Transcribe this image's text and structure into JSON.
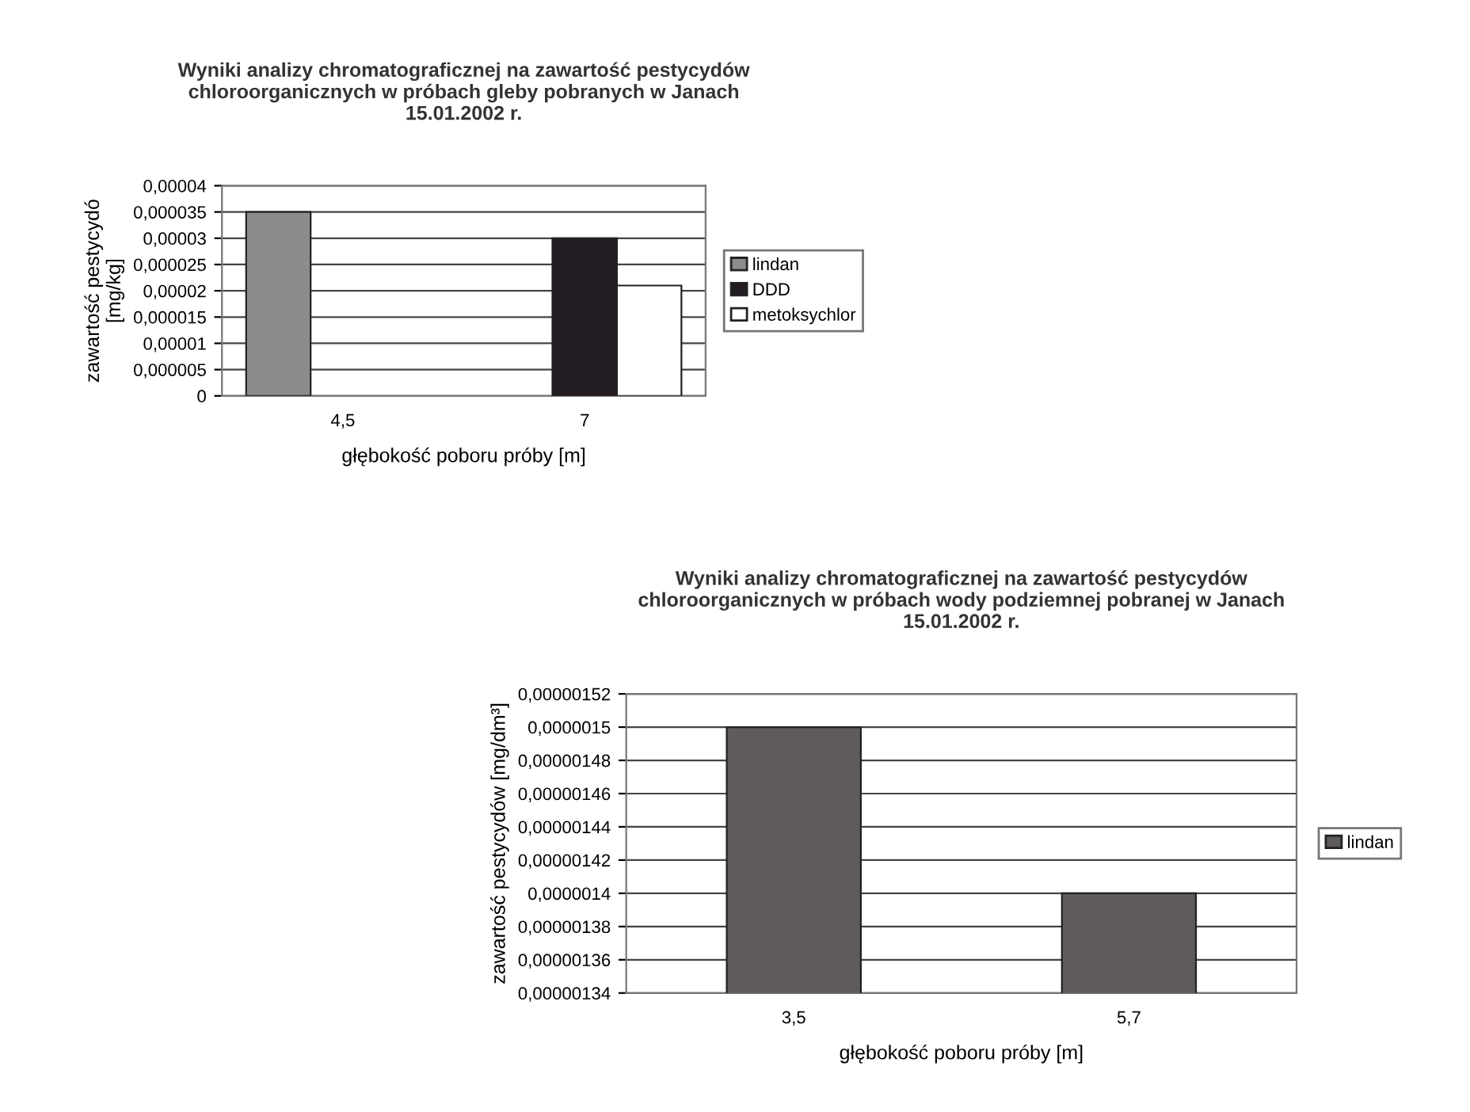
{
  "chart_data": [
    {
      "type": "bar",
      "title": "Wyniki analizy chromatograficznej na zawartość pestycydów\nchloroorganicznych w próbach gleby pobranych w Janach\n15.01.2002 r.",
      "xlabel": "głębokość poboru próby [m]",
      "ylabel": "zawartość pestycydó\n[mg/kg]",
      "categories": [
        "4,5",
        "7"
      ],
      "series": [
        {
          "name": "lindan",
          "color": "#8c8c8c",
          "values": [
            3.5e-05,
            null
          ]
        },
        {
          "name": "DDD",
          "color": "#231c22",
          "values": [
            null,
            3e-05
          ]
        },
        {
          "name": "metoksychlor",
          "color": "#ffffff",
          "values": [
            null,
            2.1e-05
          ]
        }
      ],
      "ylim": [
        0,
        4e-05
      ],
      "yticks": [
        {
          "value": 0,
          "label": "0"
        },
        {
          "value": 5e-06,
          "label": "0,000005"
        },
        {
          "value": 1e-05,
          "label": "0,00001"
        },
        {
          "value": 1.5e-05,
          "label": "0,000015"
        },
        {
          "value": 2e-05,
          "label": "0,00002"
        },
        {
          "value": 2.5e-05,
          "label": "0,000025"
        },
        {
          "value": 3e-05,
          "label": "0,00003"
        },
        {
          "value": 3.5e-05,
          "label": "0,000035"
        },
        {
          "value": 4e-05,
          "label": "0,00004"
        }
      ],
      "grid": "y",
      "legend": "right"
    },
    {
      "type": "bar",
      "title": "Wyniki analizy chromatograficznej na zawartość pestycydów\nchloroorganicznych w próbach wody podziemnej pobranej w Janach\n15.01.2002 r.",
      "xlabel": "głębokość poboru próby [m]",
      "ylabel": "zawartość pestycydów [mg/dm³]",
      "categories": [
        "3,5",
        "5,7"
      ],
      "series": [
        {
          "name": "lindan",
          "color": "#5e5a5e",
          "values": [
            1.5e-06,
            1.4e-06
          ]
        }
      ],
      "ylim": [
        1.34e-06,
        1.52e-06
      ],
      "yticks": [
        {
          "value": 1.34e-06,
          "label": "0,00000134"
        },
        {
          "value": 1.36e-06,
          "label": "0,00000136"
        },
        {
          "value": 1.38e-06,
          "label": "0,00000138"
        },
        {
          "value": 1.4e-06,
          "label": "0,0000014"
        },
        {
          "value": 1.42e-06,
          "label": "0,00000142"
        },
        {
          "value": 1.44e-06,
          "label": "0,00000144"
        },
        {
          "value": 1.46e-06,
          "label": "0,00000146"
        },
        {
          "value": 1.48e-06,
          "label": "0,00000148"
        },
        {
          "value": 1.5e-06,
          "label": "0,0000015"
        },
        {
          "value": 1.52e-06,
          "label": "0,00000152"
        }
      ],
      "grid": "y",
      "legend": "right"
    }
  ]
}
